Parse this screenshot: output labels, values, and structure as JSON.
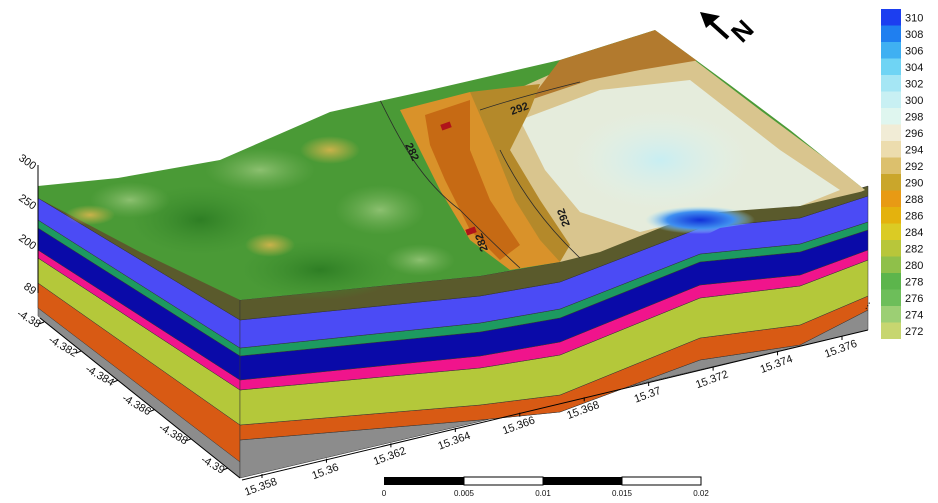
{
  "legend": {
    "entries": [
      {
        "value": "310",
        "color": "#1c3ef0"
      },
      {
        "value": "308",
        "color": "#1f7ff0"
      },
      {
        "value": "306",
        "color": "#3fb0f2"
      },
      {
        "value": "304",
        "color": "#6fd4f4"
      },
      {
        "value": "302",
        "color": "#a5e6f4"
      },
      {
        "value": "300",
        "color": "#c8f0f3"
      },
      {
        "value": "298",
        "color": "#dff6ef"
      },
      {
        "value": "296",
        "color": "#f1ecd6"
      },
      {
        "value": "294",
        "color": "#ecdcae"
      },
      {
        "value": "292",
        "color": "#dcc06d"
      },
      {
        "value": "290",
        "color": "#caa62b"
      },
      {
        "value": "288",
        "color": "#e89a14"
      },
      {
        "value": "286",
        "color": "#e4b20d"
      },
      {
        "value": "284",
        "color": "#dbcb24"
      },
      {
        "value": "282",
        "color": "#b8c63a"
      },
      {
        "value": "280",
        "color": "#8fc04a"
      },
      {
        "value": "278",
        "color": "#5cb54c"
      },
      {
        "value": "276",
        "color": "#6dbe5a"
      },
      {
        "value": "274",
        "color": "#9ccf74"
      },
      {
        "value": "272",
        "color": "#c7d670"
      }
    ]
  },
  "north_arrow": {
    "label": "N"
  },
  "x_axis_ticks": [
    "15.358",
    "15.36",
    "15.362",
    "15.364",
    "15.366",
    "15.368",
    "15.37",
    "15.372",
    "15.374",
    "15.376"
  ],
  "y_axis_ticks": [
    "-4.38",
    "-4.382",
    "-4.384",
    "-4.386",
    "-4.388",
    "-4.39"
  ],
  "z_axis_ticks": [
    "300",
    "250",
    "200",
    "89"
  ],
  "contour_labels": [
    "282",
    "292",
    "292",
    "282"
  ],
  "scale_bar": {
    "labels": [
      "0",
      "0.005",
      "0.01",
      "0.015",
      "0.02"
    ]
  },
  "right_edge_label": "...",
  "colors": {
    "layer_top_band": "#5a5a2c",
    "layer_blue": "#4b4bf5",
    "layer_green": "#1d9a60",
    "layer_navy": "#0a0aa8",
    "layer_magenta": "#f0148c",
    "layer_olive": "#b4c83a",
    "layer_orange": "#d85a14",
    "layer_gray": "#8c8c8c"
  }
}
